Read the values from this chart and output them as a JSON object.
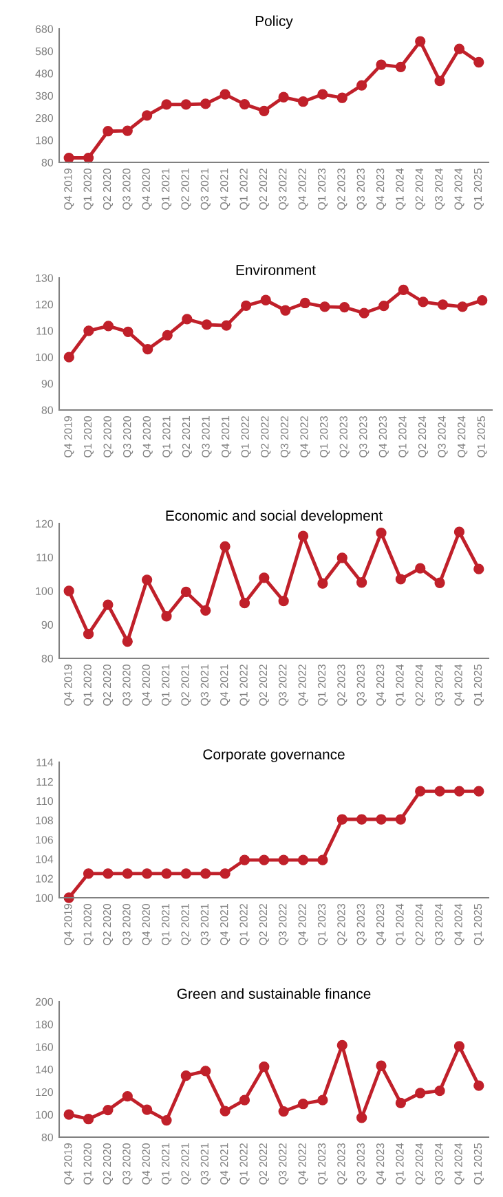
{
  "chart_data": [
    {
      "type": "line",
      "title": "Policy",
      "categories": [
        "Q4 2019",
        "Q1 2020",
        "Q2 2020",
        "Q3 2020",
        "Q4 2020",
        "Q1 2021",
        "Q2 2021",
        "Q3 2021",
        "Q4 2021",
        "Q1 2022",
        "Q2 2022",
        "Q3 2022",
        "Q4 2022",
        "Q1 2023",
        "Q2 2023",
        "Q3 2023",
        "Q4 2023",
        "Q1 2024",
        "Q2 2024",
        "Q3 2024",
        "Q4 2024",
        "Q1 2025"
      ],
      "ylim": [
        80,
        680
      ],
      "yticks": [
        80,
        180,
        280,
        380,
        480,
        580,
        680
      ],
      "marker": "circle",
      "series": [
        {
          "color": "#c0202a",
          "values": [
            100,
            100,
            220,
            222,
            291,
            340,
            340,
            343,
            386,
            341,
            311,
            373,
            353,
            386,
            370,
            426,
            519,
            509,
            624,
            446,
            590,
            530
          ]
        }
      ]
    },
    {
      "type": "line",
      "title": "Environment",
      "categories": [
        "Q4 2019",
        "Q1 2020",
        "Q2 2020",
        "Q3 2020",
        "Q4 2020",
        "Q1 2021",
        "Q2 2021",
        "Q3 2021",
        "Q4 2021",
        "Q1 2022",
        "Q2 2022",
        "Q3 2022",
        "Q4 2022",
        "Q1 2023",
        "Q2 2023",
        "Q3 2023",
        "Q4 2023",
        "Q1 2024",
        "Q2 2024",
        "Q3 2024",
        "Q4 2024",
        "Q1 2025"
      ],
      "ylim": [
        80,
        130
      ],
      "yticks": [
        80,
        90,
        100,
        110,
        120,
        130
      ],
      "marker": "circle",
      "series": [
        {
          "color": "#c0202a",
          "values": [
            100,
            110,
            111.8,
            109.6,
            103,
            108.3,
            114.4,
            112.3,
            112,
            119.5,
            121.6,
            117.7,
            120.5,
            119.1,
            118.9,
            116.7,
            119.4,
            125.5,
            120.9,
            119.9,
            119.1,
            121.5
          ]
        }
      ]
    },
    {
      "type": "line",
      "title": "Economic and social development",
      "categories": [
        "Q4 2019",
        "Q1 2020",
        "Q2 2020",
        "Q3 2020",
        "Q4 2020",
        "Q1 2021",
        "Q2 2021",
        "Q3 2021",
        "Q4 2021",
        "Q1 2022",
        "Q2 2022",
        "Q3 2022",
        "Q4 2022",
        "Q1 2023",
        "Q2 2023",
        "Q3 2023",
        "Q4 2023",
        "Q1 2024",
        "Q2 2024",
        "Q3 2024",
        "Q4 2024",
        "Q1 2025"
      ],
      "ylim": [
        80,
        120
      ],
      "yticks": [
        80,
        90,
        100,
        110,
        120
      ],
      "marker": "circle",
      "series": [
        {
          "color": "#c0202a",
          "values": [
            100,
            87.2,
            95.9,
            85,
            103.3,
            92.5,
            99.7,
            94.2,
            113.2,
            96.4,
            103.9,
            97,
            116.3,
            102.2,
            109.8,
            102.5,
            117.2,
            103.5,
            106.7,
            102.4,
            117.5,
            106.5
          ]
        }
      ]
    },
    {
      "type": "line",
      "title": "Corporate governance",
      "categories": [
        "Q4 2019",
        "Q1 2020",
        "Q2 2020",
        "Q3 2020",
        "Q4 2020",
        "Q1 2021",
        "Q2 2021",
        "Q3 2021",
        "Q4 2021",
        "Q1 2022",
        "Q2 2022",
        "Q3 2022",
        "Q4 2022",
        "Q1 2023",
        "Q2 2023",
        "Q3 2023",
        "Q4 2023",
        "Q1 2024",
        "Q2 2024",
        "Q3 2024",
        "Q4 2024",
        "Q1 2025"
      ],
      "ylim": [
        100,
        114
      ],
      "yticks": [
        100,
        102,
        104,
        106,
        108,
        110,
        112,
        114
      ],
      "marker": "circle",
      "series": [
        {
          "color": "#c0202a",
          "values": [
            100,
            102.5,
            102.5,
            102.5,
            102.5,
            102.5,
            102.5,
            102.5,
            102.5,
            103.9,
            103.9,
            103.9,
            103.9,
            103.9,
            108.1,
            108.1,
            108.1,
            108.1,
            111,
            111,
            111,
            111
          ]
        }
      ]
    },
    {
      "type": "line",
      "title": "Green and sustainable finance",
      "categories": [
        "Q4 2019",
        "Q1 2020",
        "Q2 2020",
        "Q3 2020",
        "Q4 2020",
        "Q1 2021",
        "Q2 2021",
        "Q3 2021",
        "Q4 2021",
        "Q1 2022",
        "Q2 2022",
        "Q3 2022",
        "Q4 2022",
        "Q1 2023",
        "Q2 2023",
        "Q3 2023",
        "Q4 2023",
        "Q1 2024",
        "Q2 2024",
        "Q3 2024",
        "Q4 2024",
        "Q1 2025"
      ],
      "ylim": [
        80,
        200
      ],
      "yticks": [
        80,
        100,
        120,
        140,
        160,
        180,
        200
      ],
      "marker": "circle",
      "series": [
        {
          "color": "#c0202a",
          "values": [
            100,
            96,
            104,
            116.2,
            104.3,
            94.9,
            134.4,
            138.6,
            103.1,
            112.8,
            142.3,
            102.8,
            109.4,
            112.8,
            161.4,
            97.2,
            143.2,
            110.2,
            119,
            121,
            160.5,
            125.6
          ]
        }
      ]
    }
  ]
}
